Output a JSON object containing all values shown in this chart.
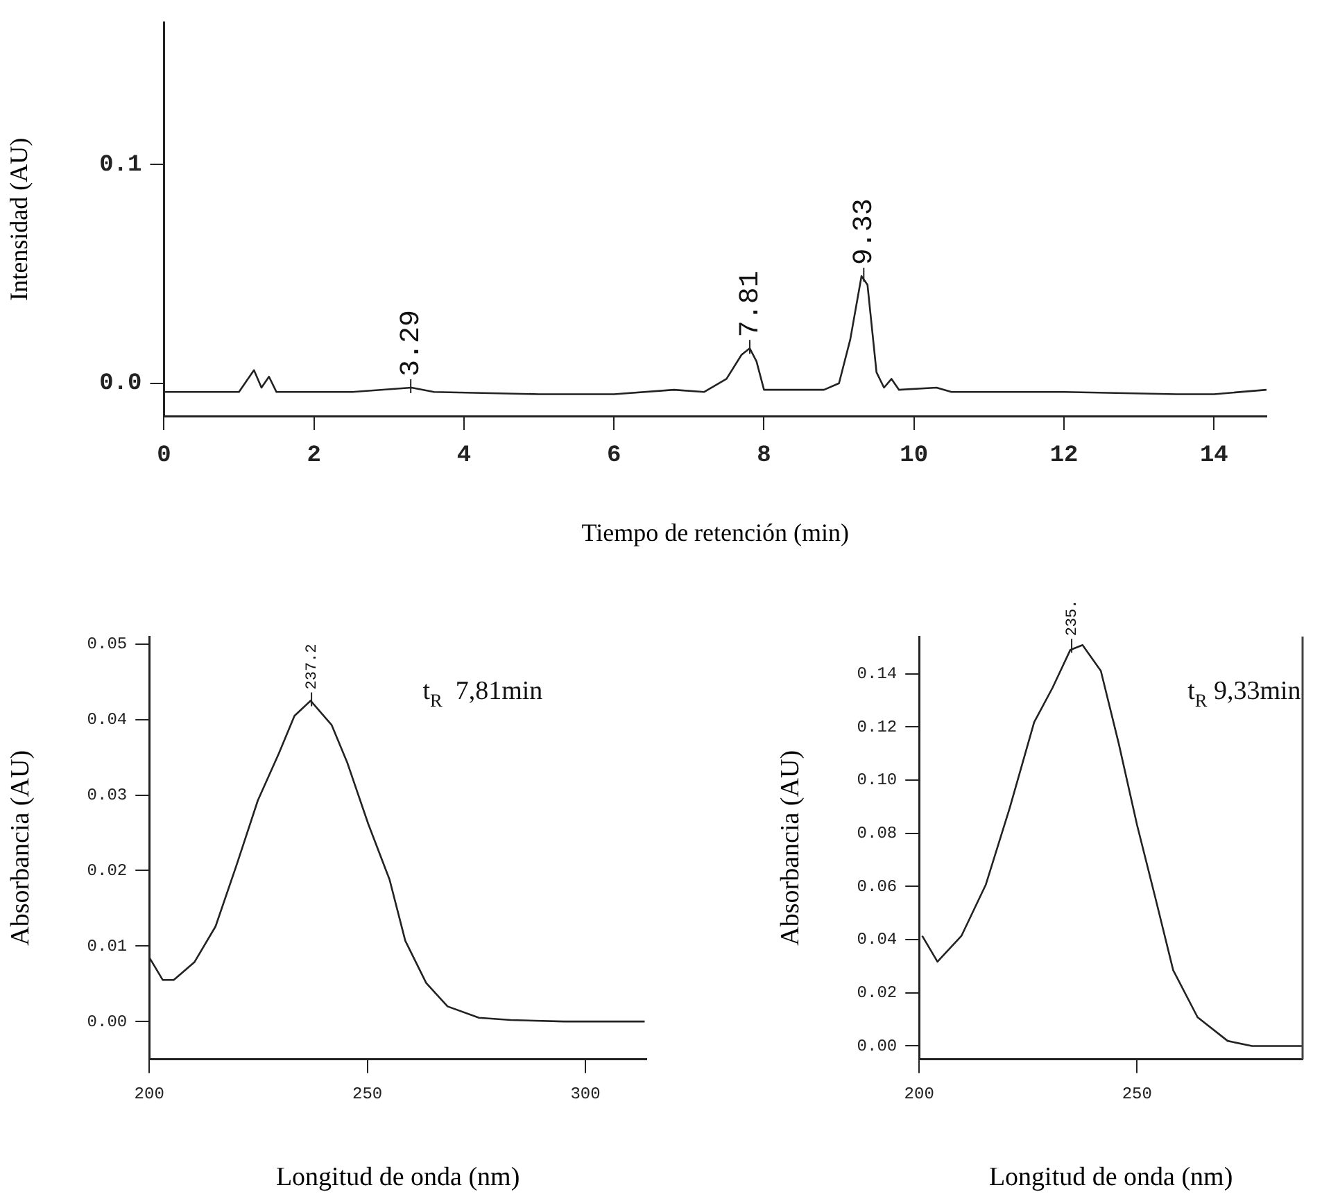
{
  "chart_data": [
    {
      "type": "line",
      "xlabel": "Tiempo de retención (min)",
      "ylabel": "Intensidad (AU)",
      "marker": "none",
      "series": [
        {
          "color": "#222222",
          "x": [
            0,
            1.0,
            1.2,
            1.3,
            1.4,
            1.5,
            2.5,
            3.3,
            3.6,
            5,
            6,
            6.8,
            7.2,
            7.5,
            7.7,
            7.81,
            7.9,
            8.0,
            8.8,
            9.0,
            9.15,
            9.3,
            9.38,
            9.5,
            9.6,
            9.7,
            9.8,
            10.3,
            10.5,
            12,
            13.5,
            14,
            14.7
          ],
          "values": [
            -0.004,
            -0.004,
            0.006,
            -0.002,
            0.003,
            -0.004,
            -0.004,
            -0.002,
            -0.004,
            -0.005,
            -0.005,
            -0.003,
            -0.004,
            0.002,
            0.013,
            0.016,
            0.01,
            -0.003,
            -0.003,
            0,
            0.02,
            0.049,
            0.045,
            0.005,
            -0.002,
            0.002,
            -0.003,
            -0.002,
            -0.004,
            -0.004,
            -0.005,
            -0.005,
            -0.003
          ]
        }
      ],
      "xlim": [
        0,
        14.7
      ],
      "xticks": [
        0,
        2,
        4,
        6,
        8,
        10,
        12,
        14
      ],
      "ylim": [
        -0.015,
        0.165
      ],
      "yticks": [
        {
          "value": 0,
          "label": "0.0"
        },
        {
          "value": 0.1,
          "label": "0.1"
        }
      ],
      "annotations": [
        {
          "text": "3.29",
          "x": 3.29,
          "y": -0.002
        },
        {
          "text": "7.81",
          "x": 7.81,
          "y": 0.016
        },
        {
          "text": "9.33",
          "x": 9.33,
          "y": 0.049
        }
      ]
    },
    {
      "type": "line",
      "xlabel": "Longitud de onda (nm)",
      "ylabel": "Absorbancia (AU)",
      "marker": "none",
      "series": [
        {
          "color": "#222222",
          "x": [
            200,
            203.1,
            205.6,
            210.4,
            215.2,
            220,
            224.9,
            229.7,
            233.3,
            237,
            241.8,
            245.4,
            250.2,
            255.1,
            258.7,
            263.5,
            268.4,
            275.6,
            282.9,
            295,
            313.6
          ],
          "values": [
            0.0085,
            0.0055,
            0.0055,
            0.0079,
            0.0126,
            0.0207,
            0.0293,
            0.0355,
            0.0405,
            0.0425,
            0.0393,
            0.0343,
            0.0262,
            0.0188,
            0.0107,
            0.0051,
            0.002,
            0.0005,
            0.0002,
            0,
            0
          ]
        }
      ],
      "xlim": [
        200,
        314
      ],
      "xticks": [
        200,
        250,
        300
      ],
      "ylim": [
        -0.005,
        0.051
      ],
      "yticks": [
        {
          "value": 0,
          "label": "0.00"
        },
        {
          "value": 0.01,
          "label": "0.01"
        },
        {
          "value": 0.02,
          "label": "0.02"
        },
        {
          "value": 0.03,
          "label": "0.03"
        },
        {
          "value": 0.04,
          "label": "0.04"
        },
        {
          "value": 0.05,
          "label": "0.05"
        }
      ],
      "annotations": [
        {
          "text": "237.2",
          "x": 237.2,
          "y": 0.0425
        },
        "t$_{R}$  7,81min"
      ]
    },
    {
      "type": "line",
      "xlabel": "Longitud de onda (nm)",
      "ylabel": "Absorbancia (AU)",
      "marker": "none",
      "series": [
        {
          "color": "#222222",
          "x": [
            200.7,
            204.2,
            209.7,
            215.3,
            220.8,
            226.4,
            230.6,
            234.7,
            237.5,
            241.7,
            245.8,
            250,
            254.2,
            258.3,
            263.9,
            270.8,
            276.4,
            288
          ],
          "values": [
            0.0414,
            0.0317,
            0.0414,
            0.0607,
            0.0896,
            0.1218,
            0.1347,
            0.149,
            0.1508,
            0.1411,
            0.1138,
            0.0832,
            0.0558,
            0.0285,
            0.0108,
            0.0019,
            0,
            0
          ]
        }
      ],
      "xlim": [
        200,
        288
      ],
      "xticks": [
        200,
        250
      ],
      "ylim": [
        -0.005,
        0.154
      ],
      "yticks": [
        {
          "value": 0,
          "label": "0.00"
        },
        {
          "value": 0.02,
          "label": "0.02"
        },
        {
          "value": 0.04,
          "label": "0.04"
        },
        {
          "value": 0.06,
          "label": "0.06"
        },
        {
          "value": 0.08,
          "label": "0.08"
        },
        {
          "value": 0.1,
          "label": "0.10"
        },
        {
          "value": 0.12,
          "label": "0.12"
        },
        {
          "value": 0.14,
          "label": "0.14"
        }
      ],
      "annotations": [
        {
          "text": "235.",
          "x": 235,
          "y": 0.15
        },
        "t$_{R}$ 9,33min"
      ]
    }
  ]
}
